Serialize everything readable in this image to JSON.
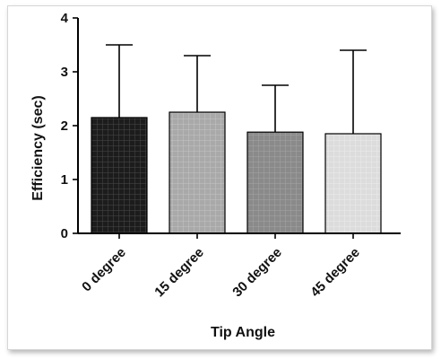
{
  "chart_data": {
    "type": "bar",
    "xlabel": "Tip Angle",
    "ylabel": "Efficiency (sec)",
    "categories": [
      "0 degree",
      "15 degree",
      "30 degree",
      "45 degree"
    ],
    "values": [
      2.15,
      2.25,
      1.88,
      1.85
    ],
    "error_upper": [
      3.5,
      3.3,
      2.75,
      3.4
    ],
    "ylim": [
      0,
      4
    ],
    "yticks": [
      "0",
      "1",
      "2",
      "3",
      "4"
    ],
    "grid": false,
    "legend": "none",
    "bar_fills": [
      "#1c1c1c",
      "#a9a9a9",
      "#8a8a8a",
      "#dcdcdc"
    ],
    "bar_pattern_lines": [
      "#4a4a4a",
      "#c4c4c4",
      "#a4a4a4",
      "#ececec"
    ]
  }
}
